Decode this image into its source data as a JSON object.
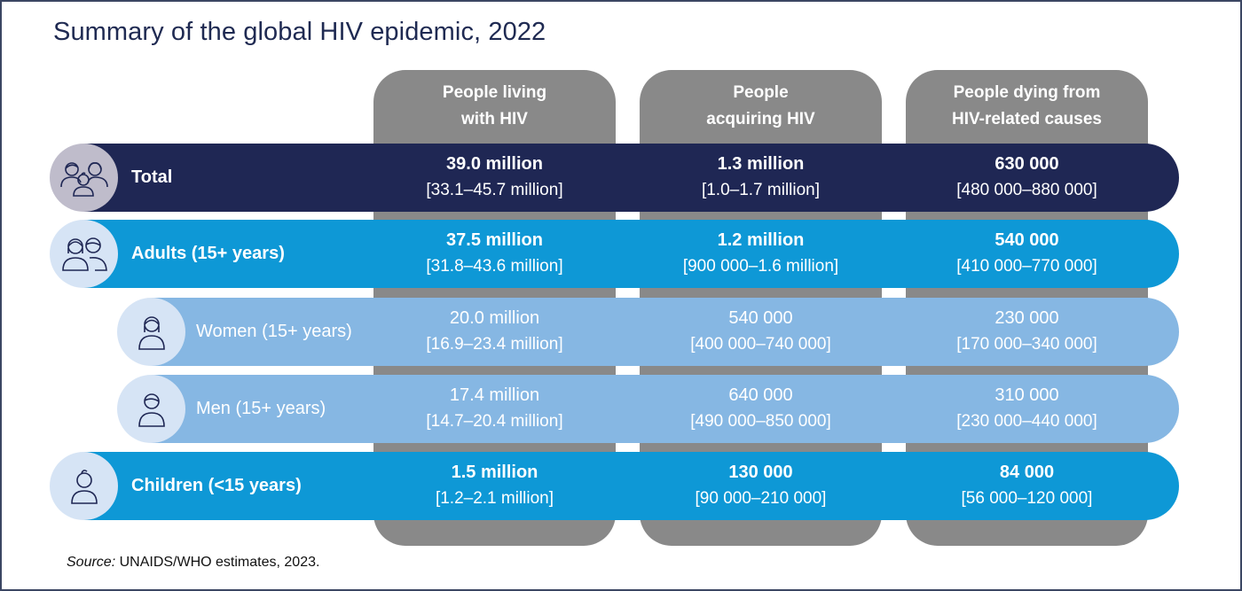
{
  "title": "Summary of the global HIV epidemic, 2022",
  "columns": [
    {
      "label": "People living with HIV",
      "line1": "People living",
      "line2": "with HIV"
    },
    {
      "label": "People acquiring HIV",
      "line1": "People",
      "line2": "acquiring HIV"
    },
    {
      "label": "People dying from HIV-related causes",
      "line1": "People dying from",
      "line2": "HIV-related causes"
    }
  ],
  "rows": [
    {
      "label": "Total",
      "icon": "family-group-icon",
      "emphasis": true,
      "color": "#1f2754",
      "icon_bg": "#bfbccb",
      "cells": [
        {
          "value": "39.0 million",
          "range": "[33.1–45.7 million]"
        },
        {
          "value": "1.3 million",
          "range": "[1.0–1.7 million]"
        },
        {
          "value": "630 000",
          "range": "[480 000–880 000]"
        }
      ]
    },
    {
      "label": "Adults (15+ years)",
      "icon": "adults-pair-icon",
      "emphasis": true,
      "color": "#0e98d6",
      "icon_bg": "#d6e4f5",
      "cells": [
        {
          "value": "37.5 million",
          "range": "[31.8–43.6 million]"
        },
        {
          "value": "1.2 million",
          "range": "[900 000–1.6 million]"
        },
        {
          "value": "540 000",
          "range": "[410 000–770 000]"
        }
      ]
    },
    {
      "label": "Women (15+ years)",
      "icon": "woman-icon",
      "emphasis": false,
      "color": "#86b7e3",
      "icon_bg": "#d6e4f5",
      "cells": [
        {
          "value": "20.0 million",
          "range": "[16.9–23.4 million]"
        },
        {
          "value": "540 000",
          "range": "[400 000–740 000]"
        },
        {
          "value": "230 000",
          "range": "[170 000–340 000]"
        }
      ]
    },
    {
      "label": "Men (15+ years)",
      "icon": "man-icon",
      "emphasis": false,
      "color": "#86b7e3",
      "icon_bg": "#d6e4f5",
      "cells": [
        {
          "value": "17.4 million",
          "range": "[14.7–20.4 million]"
        },
        {
          "value": "640 000",
          "range": "[490 000–850 000]"
        },
        {
          "value": "310 000",
          "range": "[230 000–440 000]"
        }
      ]
    },
    {
      "label": "Children (<15 years)",
      "icon": "child-icon",
      "emphasis": true,
      "color": "#0e98d6",
      "icon_bg": "#d6e4f5",
      "cells": [
        {
          "value": "1.5 million",
          "range": "[1.2–2.1 million]"
        },
        {
          "value": "130 000",
          "range": "[90 000–210 000]"
        },
        {
          "value": "84 000",
          "range": "[56 000–120 000]"
        }
      ]
    }
  ],
  "source": {
    "prefix": "Source:",
    "text": " UNAIDS/WHO estimates, 2023."
  },
  "colors": {
    "column_bg": "#898989",
    "title": "#1f2a52",
    "icon_stroke": "#1f2754"
  },
  "chart_data": {
    "type": "table",
    "title": "Summary of the global HIV epidemic, 2022",
    "columns": [
      "People living with HIV",
      "People acquiring HIV",
      "People dying from HIV-related causes"
    ],
    "rows": [
      {
        "category": "Total",
        "values": [
          "39.0 million",
          "1.3 million",
          "630 000"
        ],
        "ranges": [
          "[33.1–45.7 million]",
          "[1.0–1.7 million]",
          "[480 000–880 000]"
        ]
      },
      {
        "category": "Adults (15+ years)",
        "values": [
          "37.5 million",
          "1.2 million",
          "540 000"
        ],
        "ranges": [
          "[31.8–43.6 million]",
          "[900 000–1.6 million]",
          "[410 000–770 000]"
        ]
      },
      {
        "category": "Women (15+ years)",
        "values": [
          "20.0 million",
          "540 000",
          "230 000"
        ],
        "ranges": [
          "[16.9–23.4 million]",
          "[400 000–740 000]",
          "[170 000–340 000]"
        ]
      },
      {
        "category": "Men (15+ years)",
        "values": [
          "17.4 million",
          "640 000",
          "310 000"
        ],
        "ranges": [
          "[14.7–20.4 million]",
          "[490 000–850 000]",
          "[230 000–440 000]"
        ]
      },
      {
        "category": "Children (<15 years)",
        "values": [
          "1.5 million",
          "130 000",
          "84 000"
        ],
        "ranges": [
          "[1.2–2.1 million]",
          "[90 000–210 000]",
          "[56 000–120 000]"
        ]
      }
    ],
    "source": "Source: UNAIDS/WHO estimates, 2023."
  }
}
